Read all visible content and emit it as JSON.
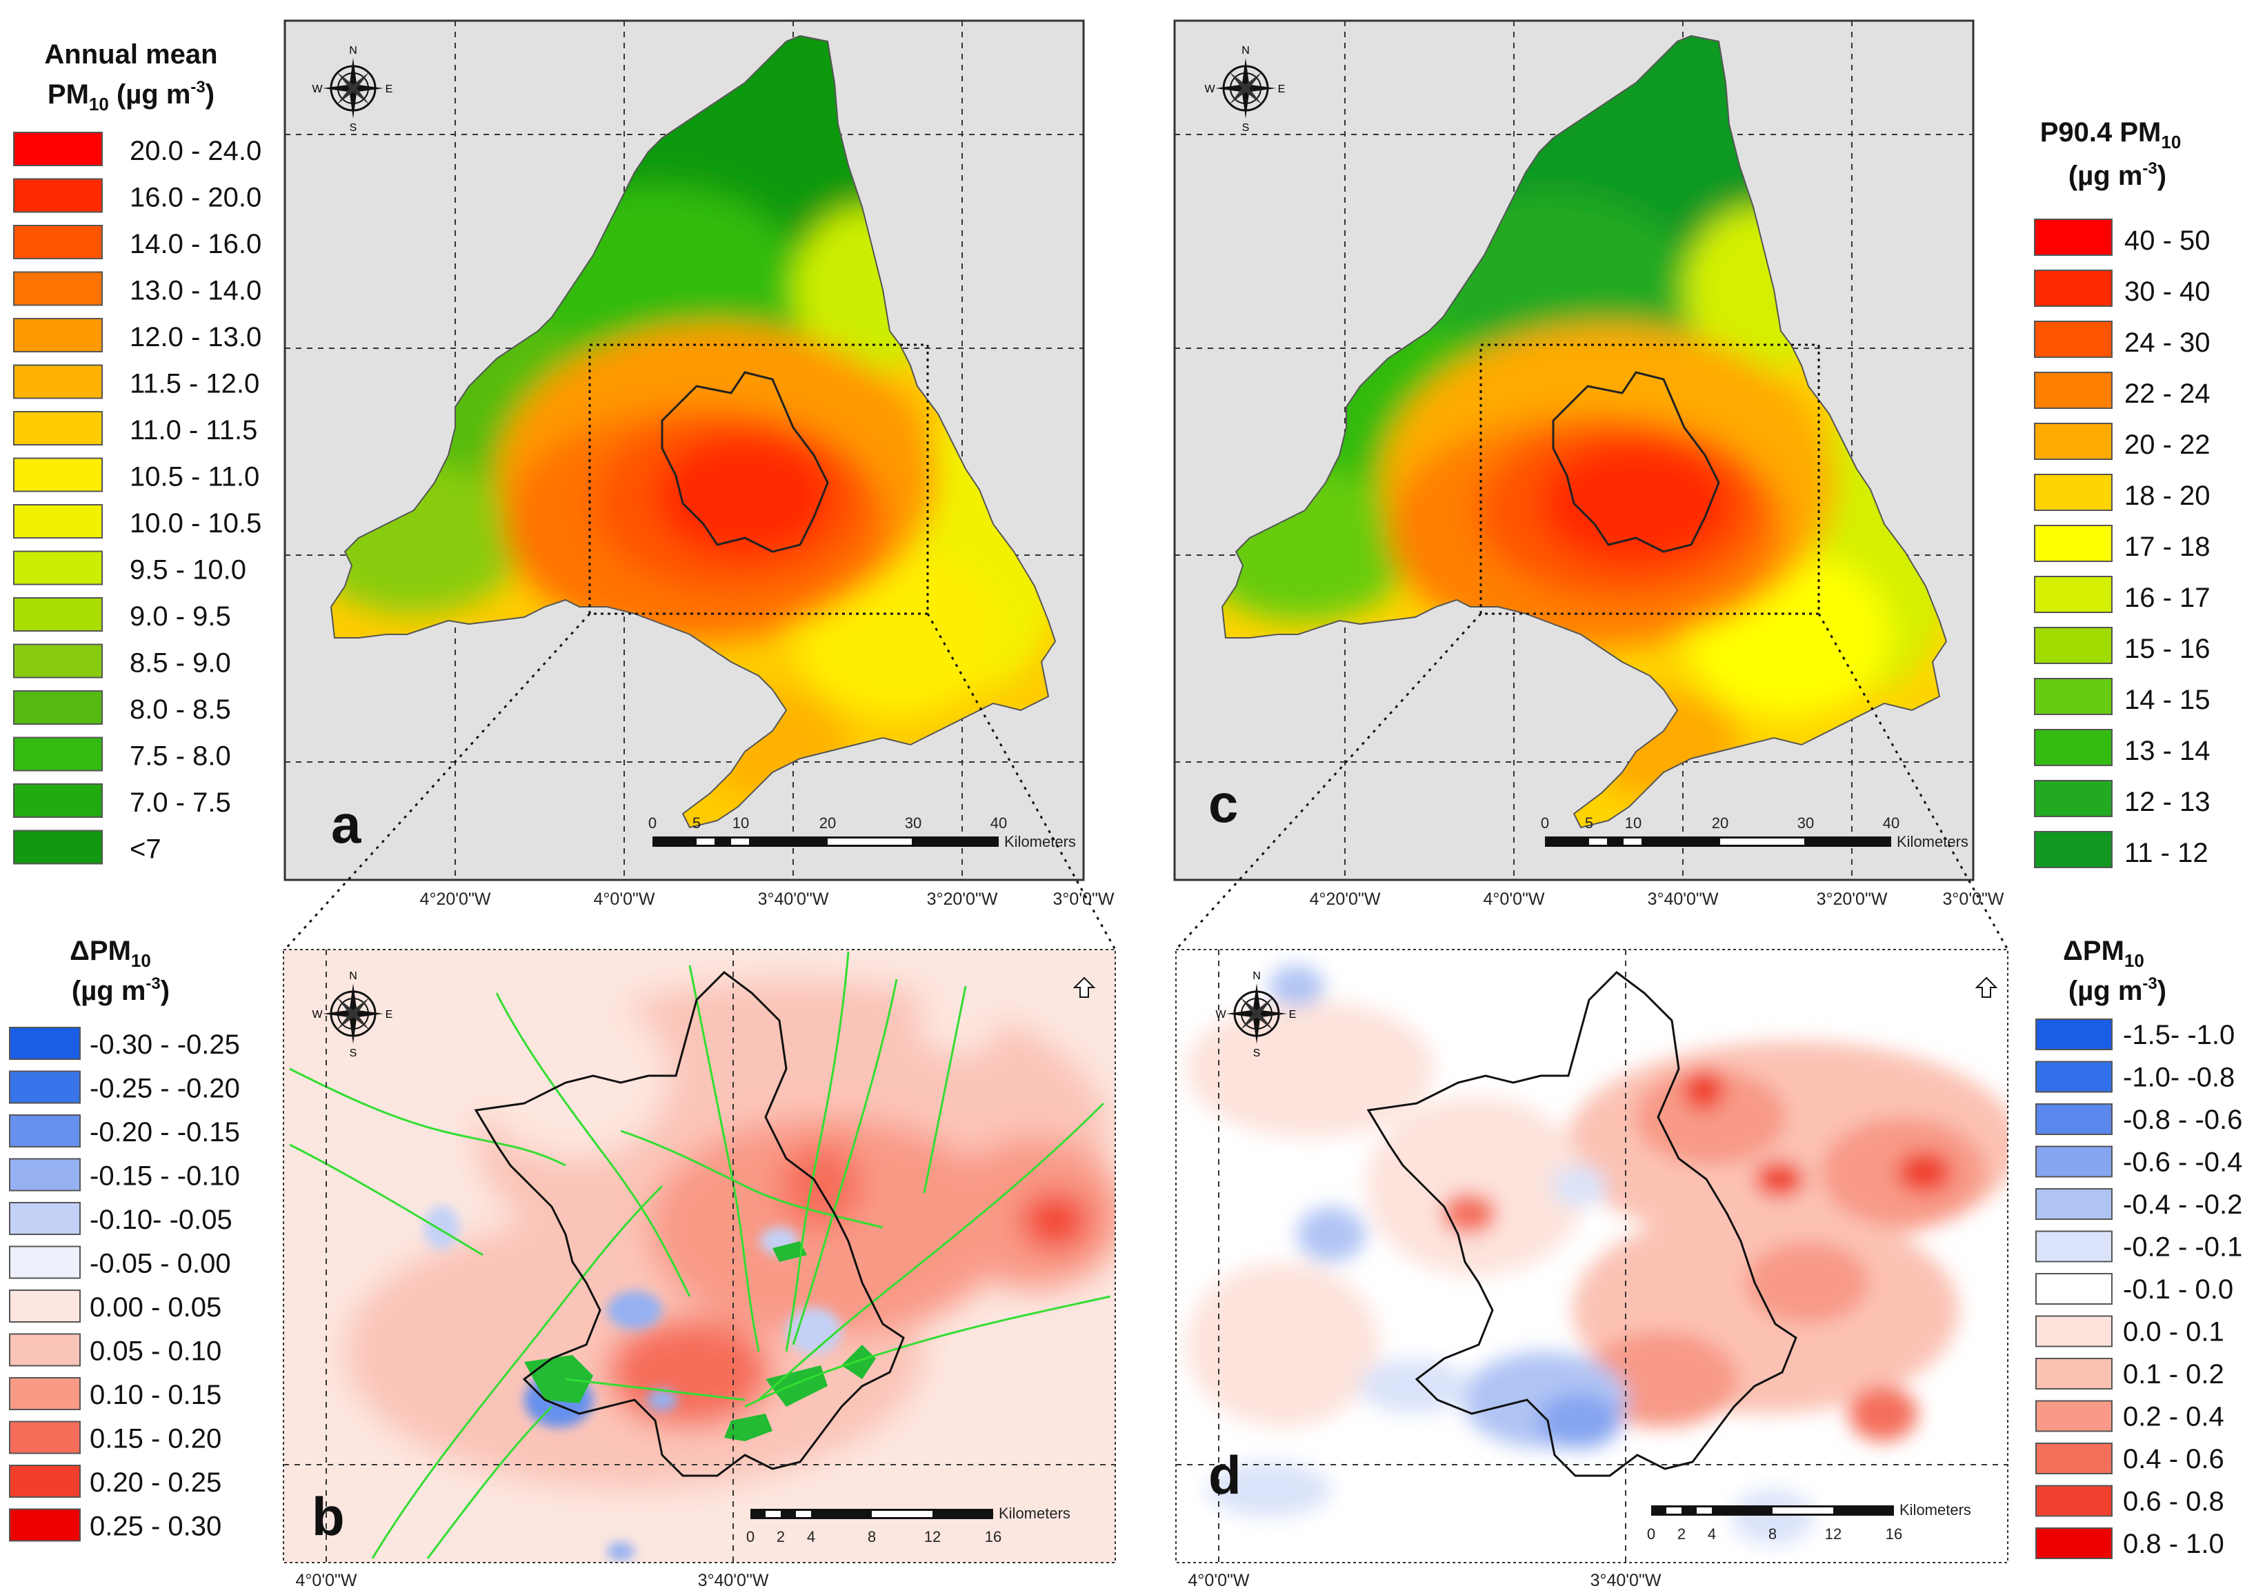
{
  "figure": {
    "panels": {
      "a": {
        "letter": "a"
      },
      "b": {
        "letter": "b"
      },
      "c": {
        "letter": "c"
      },
      "d": {
        "letter": "d"
      }
    },
    "legend_a": {
      "title_line1": "Annual mean",
      "title_line2_main": "PM",
      "title_line2_sub": "10",
      "title_line2_unit": " (µg m",
      "title_line2_sup": "-3",
      "title_line2_end": ")",
      "items": [
        {
          "label": "20.0 - 24.0",
          "color": "#ff0000"
        },
        {
          "label": "16.0 - 20.0",
          "color": "#ff2a00"
        },
        {
          "label": "14.0 - 16.0",
          "color": "#ff5500"
        },
        {
          "label": "13.0 - 14.0",
          "color": "#ff7300"
        },
        {
          "label": "12.0 - 13.0",
          "color": "#ff9900"
        },
        {
          "label": "11.5 - 12.0",
          "color": "#ffb300"
        },
        {
          "label": "11.0 - 11.5",
          "color": "#ffcc00"
        },
        {
          "label": "10.5 - 11.0",
          "color": "#ffee00"
        },
        {
          "label": "10.0 - 10.5",
          "color": "#f2f200"
        },
        {
          "label": "9.5 - 10.0",
          "color": "#ccee00"
        },
        {
          "label": "9.0 - 9.5",
          "color": "#aadd00"
        },
        {
          "label": "8.5 - 9.0",
          "color": "#88cc11"
        },
        {
          "label": "8.0 - 8.5",
          "color": "#55bb11"
        },
        {
          "label": "7.5 - 8.0",
          "color": "#33bb11"
        },
        {
          "label": "7.0 - 7.5",
          "color": "#22aa11"
        },
        {
          "label": "<7",
          "color": "#119911"
        }
      ]
    },
    "legend_c": {
      "title_line1_main": "P90.4 PM",
      "title_line1_sub": "10",
      "title_line2_main": "(µg m",
      "title_line2_sup": "-3",
      "title_line2_end": ")",
      "items": [
        {
          "label": "40 - 50",
          "color": "#ff0000"
        },
        {
          "label": "30 - 40",
          "color": "#ff2a00"
        },
        {
          "label": "24 - 30",
          "color": "#ff5500"
        },
        {
          "label": "22 - 24",
          "color": "#ff7f00"
        },
        {
          "label": "20 - 22",
          "color": "#ffaa00"
        },
        {
          "label": "18 - 20",
          "color": "#ffd400"
        },
        {
          "label": "17 - 18",
          "color": "#ffff00"
        },
        {
          "label": "16 - 17",
          "color": "#d4f000"
        },
        {
          "label": "15 - 16",
          "color": "#a0dc00"
        },
        {
          "label": "14 - 15",
          "color": "#66cc11"
        },
        {
          "label": "13 - 14",
          "color": "#33bb11"
        },
        {
          "label": "12 - 13",
          "color": "#22aa22"
        },
        {
          "label": "11 - 12",
          "color": "#119922"
        }
      ]
    },
    "legend_b": {
      "title_line1_main": "ΔPM",
      "title_line1_sub": "10",
      "title_line2_main": "(µg m",
      "title_line2_sup": "-3",
      "title_line2_end": ")",
      "items": [
        {
          "label": "-0.30 - -0.25",
          "color": "#1a5ee6"
        },
        {
          "label": "-0.25 - -0.20",
          "color": "#3875ea"
        },
        {
          "label": "-0.20 - -0.15",
          "color": "#6691ee"
        },
        {
          "label": "-0.15 - -0.10",
          "color": "#95b1f2"
        },
        {
          "label": "-0.10- -0.05",
          "color": "#c3d1f7"
        },
        {
          "label": "-0.05 - 0.00",
          "color": "#eef1fb"
        },
        {
          "label": "0.00 - 0.05",
          "color": "#fde6df"
        },
        {
          "label": "0.05 - 0.10",
          "color": "#fbc4b8"
        },
        {
          "label": "0.10 - 0.15",
          "color": "#f99a87"
        },
        {
          "label": "0.15 - 0.20",
          "color": "#f66e5a"
        },
        {
          "label": "0.20 - 0.25",
          "color": "#f23f2c"
        },
        {
          "label": "0.25 - 0.30",
          "color": "#ee0000"
        }
      ]
    },
    "legend_d": {
      "title_line1_main": "ΔPM",
      "title_line1_sub": "10",
      "title_line2_main": "(µg m",
      "title_line2_sup": "-3",
      "title_line2_end": ")",
      "items": [
        {
          "label": "-1.5- -1.0",
          "color": "#1a5ee6"
        },
        {
          "label": "-1.0-  -0.8",
          "color": "#3170e9"
        },
        {
          "label": "-0.8 - -0.6",
          "color": "#5a88ec"
        },
        {
          "label": "-0.6 - -0.4",
          "color": "#85a5f0"
        },
        {
          "label": "-0.4 - -0.2",
          "color": "#b0c4f4"
        },
        {
          "label": "-0.2 - -0.1",
          "color": "#dae3f9"
        },
        {
          "label": "-0.1 - 0.0",
          "color": "#ffffff"
        },
        {
          "label": "0.0 - 0.1",
          "color": "#fde3dc"
        },
        {
          "label": "0.1 - 0.2",
          "color": "#fbc2b4"
        },
        {
          "label": "0.2 - 0.4",
          "color": "#f89a87"
        },
        {
          "label": "0.4 - 0.6",
          "color": "#f4705b"
        },
        {
          "label": "0.6 - 0.8",
          "color": "#f0422f"
        },
        {
          "label": "0.8 - 1.0",
          "color": "#ee0000"
        }
      ]
    },
    "axis_ticks_top": [
      "4°20'0\"W",
      "4°0'0\"W",
      "3°40'0\"W",
      "3°20'0\"W",
      "3°0'0\"W"
    ],
    "axis_ticks_bottom": [
      "4°0'0\"W",
      "3°40'0\"W"
    ],
    "scalebar_top": {
      "ticks": [
        "0",
        "5",
        "10",
        "20",
        "30",
        "40"
      ],
      "unit": "Kilometers"
    },
    "scalebar_bottom": {
      "ticks": [
        "0",
        "2",
        "4",
        "8",
        "12",
        "16"
      ],
      "unit": "Kilometers"
    },
    "compass": {
      "n": "N",
      "s": "S",
      "e": "E",
      "w": "W"
    },
    "colors": {
      "map_background": "#e1e1e1",
      "green_dark": "#119911",
      "green": "#55bb11",
      "yellow": "#ffee00",
      "orange": "#ff9900",
      "red": "#ff3a00",
      "road_green": "#33dd33",
      "delta_bg": "#fce7e0"
    }
  }
}
